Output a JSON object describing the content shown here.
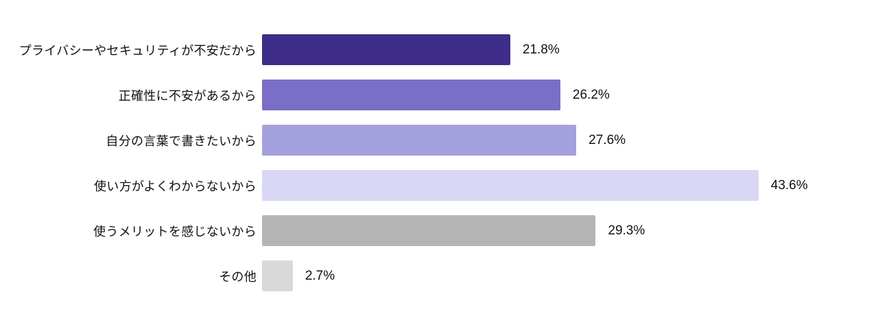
{
  "chart_data": {
    "type": "bar",
    "orientation": "horizontal",
    "title": "",
    "xlabel": "",
    "ylabel": "",
    "grid": false,
    "legend": false,
    "axes_visible": false,
    "xlim": [
      0,
      45
    ],
    "categories": [
      "プライバシーやセキュリティが不安だから",
      "正確性に不安があるから",
      "自分の言葉で書きたいから",
      "使い方がよくわからないから",
      "使うメリットを感じないから",
      "その他"
    ],
    "values": [
      21.8,
      26.2,
      27.6,
      43.6,
      29.3,
      2.7
    ],
    "value_labels": [
      "21.8%",
      "26.2%",
      "27.6%",
      "43.6%",
      "29.3%",
      "2.7%"
    ],
    "bar_colors": [
      "#3E2D88",
      "#7A6EC6",
      "#A5A1DE",
      "#D8D7F6",
      "#B4B4B4",
      "#D9D9D9"
    ]
  },
  "colors": {
    "background": "#FFFFFF",
    "text": "#111111"
  }
}
